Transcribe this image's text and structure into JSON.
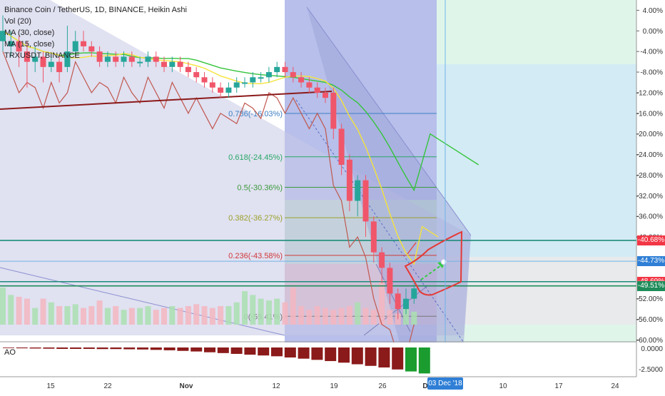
{
  "legend": {
    "title": "Binance Coin / TetherUS, 1D, BINANCE, Heikin Ashi",
    "vol": "Vol (20)",
    "ma30": "MA (30, close)",
    "ma15": "MA (15, close)",
    "compare": "TRXUSDT, BINANCE"
  },
  "ao_label": "AO",
  "date_badge": "03 Dec '18",
  "price_badges": [
    {
      "text": "-40.68%",
      "color": "#f23645"
    },
    {
      "text": "-44.73%",
      "color": "#2f7fd6"
    },
    {
      "text": "-48.69%",
      "color": "#f23645"
    },
    {
      "text": "-49.51%",
      "color": "#1e8c5a"
    }
  ],
  "colors": {
    "up": "#26a69a",
    "down": "#f0566a",
    "ma_yellow": "#f5e33a",
    "ma_green": "#35c43b",
    "compare_line": "#c0574e",
    "trend_line": "#8b1a1a",
    "fib_bg_top": "#cfe3f7",
    "channel": "#9aa0d8",
    "ao_up": "#1a9c2f",
    "ao_down": "#8b1a1a",
    "arrow": "#33cc44",
    "pattern": "#e53935"
  },
  "chart_data": {
    "type": "candlestick",
    "price_axis_ticks": [
      "4.00%",
      "0.00%",
      "-4.00%",
      "-8.00%",
      "-12.00%",
      "-16.00%",
      "-20.00%",
      "-24.00%",
      "-28.00%",
      "-32.00%",
      "-36.00%",
      "-40.00%",
      "-52.00%",
      "-56.00%",
      "-60.00%"
    ],
    "price_range": [
      -60.5,
      6
    ],
    "x_ticks": [
      "15",
      "22",
      "Nov",
      "12",
      "19",
      "26",
      "D",
      "10",
      "17",
      "24"
    ],
    "fib_levels": [
      {
        "label": "0.786(-16.03%)",
        "value": -16.03,
        "color": "#3d7fc4"
      },
      {
        "label": "0.618(-24.45%)",
        "value": -24.45,
        "color": "#2aa866"
      },
      {
        "label": "0.5(-30.36%)",
        "value": -30.36,
        "color": "#3c9a3c"
      },
      {
        "label": "0.382(-36.27%)",
        "value": -36.27,
        "color": "#9aa12a"
      },
      {
        "label": "0.236(-43.58%)",
        "value": -43.58,
        "color": "#d03838"
      },
      {
        "label": "0(-55.41%)",
        "value": -55.41,
        "color": "#777777"
      }
    ],
    "horizontal_levels": [
      -40.68,
      -44.73,
      -48.69,
      -49.51
    ],
    "candles": [
      [
        0,
        -2,
        0,
        3,
        -4
      ],
      [
        1,
        -3,
        -2,
        0,
        -5
      ],
      [
        2,
        -2,
        -4,
        -1,
        -7
      ],
      [
        3,
        -4,
        -6,
        -2,
        -11
      ],
      [
        4,
        -6,
        -5,
        -3,
        -8
      ],
      [
        5,
        -5,
        -7,
        -4,
        -10
      ],
      [
        6,
        -7,
        -6,
        -5,
        -8
      ],
      [
        7,
        -6,
        -8,
        -5,
        -10
      ],
      [
        8,
        -7,
        -4,
        1,
        -8
      ],
      [
        9,
        -4,
        -2,
        0,
        -5
      ],
      [
        10,
        -2,
        -3,
        0,
        -4
      ],
      [
        11,
        -3,
        -4,
        -2,
        -5
      ],
      [
        12,
        -4,
        -6,
        -3,
        -7
      ],
      [
        13,
        -6,
        -5,
        -4,
        -7
      ],
      [
        14,
        -5,
        -6,
        -4,
        -7
      ],
      [
        15,
        -6,
        -5,
        -4,
        -7
      ],
      [
        16,
        -5,
        -6,
        -4,
        -7
      ],
      [
        17,
        -6,
        -6,
        -5,
        -7
      ],
      [
        18,
        -6,
        -5,
        -4,
        -7
      ],
      [
        19,
        -5,
        -6,
        -4,
        -7
      ],
      [
        20,
        -6,
        -7,
        -5,
        -8
      ],
      [
        21,
        -7,
        -6,
        -5,
        -8
      ],
      [
        22,
        -6,
        -7,
        -5,
        -8
      ],
      [
        23,
        -7,
        -8,
        -6,
        -9
      ],
      [
        24,
        -8,
        -9,
        -7,
        -10
      ],
      [
        25,
        -9,
        -10,
        -8,
        -11
      ],
      [
        26,
        -10,
        -11,
        -9,
        -12
      ],
      [
        27,
        -11,
        -12,
        -10,
        -13
      ],
      [
        28,
        -12,
        -11,
        -10,
        -13
      ],
      [
        29,
        -11,
        -10,
        -9,
        -12
      ],
      [
        30,
        -10,
        -10,
        -9,
        -11
      ],
      [
        31,
        -10,
        -9,
        -8,
        -11
      ],
      [
        32,
        -9,
        -9,
        -8,
        -10
      ],
      [
        33,
        -9,
        -8,
        -7,
        -10
      ],
      [
        34,
        -8,
        -7,
        -6,
        -9
      ],
      [
        35,
        -7,
        -8,
        -6,
        -9
      ],
      [
        36,
        -8,
        -9,
        -7,
        -10
      ],
      [
        37,
        -9,
        -10,
        -8,
        -11
      ],
      [
        38,
        -10,
        -11,
        -9,
        -12
      ],
      [
        39,
        -11,
        -12,
        -10,
        -13
      ],
      [
        40,
        -12,
        -13,
        -11,
        -14
      ],
      [
        41,
        -12,
        -19,
        -11,
        -21
      ],
      [
        42,
        -19,
        -26,
        -18,
        -28
      ],
      [
        43,
        -25,
        -33,
        -24,
        -35
      ],
      [
        44,
        -33,
        -29,
        -28,
        -36
      ],
      [
        45,
        -29,
        -37,
        -28,
        -40
      ],
      [
        46,
        -37,
        -43,
        -36,
        -45
      ],
      [
        47,
        -43,
        -46,
        -42,
        -49
      ],
      [
        48,
        -46,
        -51,
        -45,
        -53
      ],
      [
        49,
        -51,
        -54,
        -50,
        -56
      ],
      [
        50,
        -54,
        -52,
        -50,
        -55
      ],
      [
        51,
        -52,
        -50,
        -49,
        -53
      ]
    ],
    "volume": [
      20,
      16,
      15,
      14,
      9,
      14,
      12,
      10,
      10,
      11,
      9,
      10,
      13,
      9,
      10,
      8,
      9,
      9,
      10,
      8,
      9,
      10,
      9,
      10,
      11,
      10,
      9,
      10,
      10,
      12,
      18,
      16,
      14,
      13,
      14,
      12,
      20,
      10,
      8,
      10,
      9,
      8,
      9,
      10,
      12,
      9,
      8,
      24,
      8,
      6,
      9,
      7
    ],
    "ao": [
      -3,
      -4,
      -5,
      -6,
      -7,
      -7,
      -7,
      -8,
      -8,
      -9,
      -10,
      -12,
      -14,
      -17,
      -20,
      -24,
      -28,
      -32,
      -36,
      -40,
      -44,
      -50,
      -56,
      -62,
      -68,
      -76,
      -84,
      -92,
      -100,
      -110,
      -120,
      -130
    ],
    "ao_axis_ticks": [
      "0.0000",
      "-2.5000"
    ]
  }
}
